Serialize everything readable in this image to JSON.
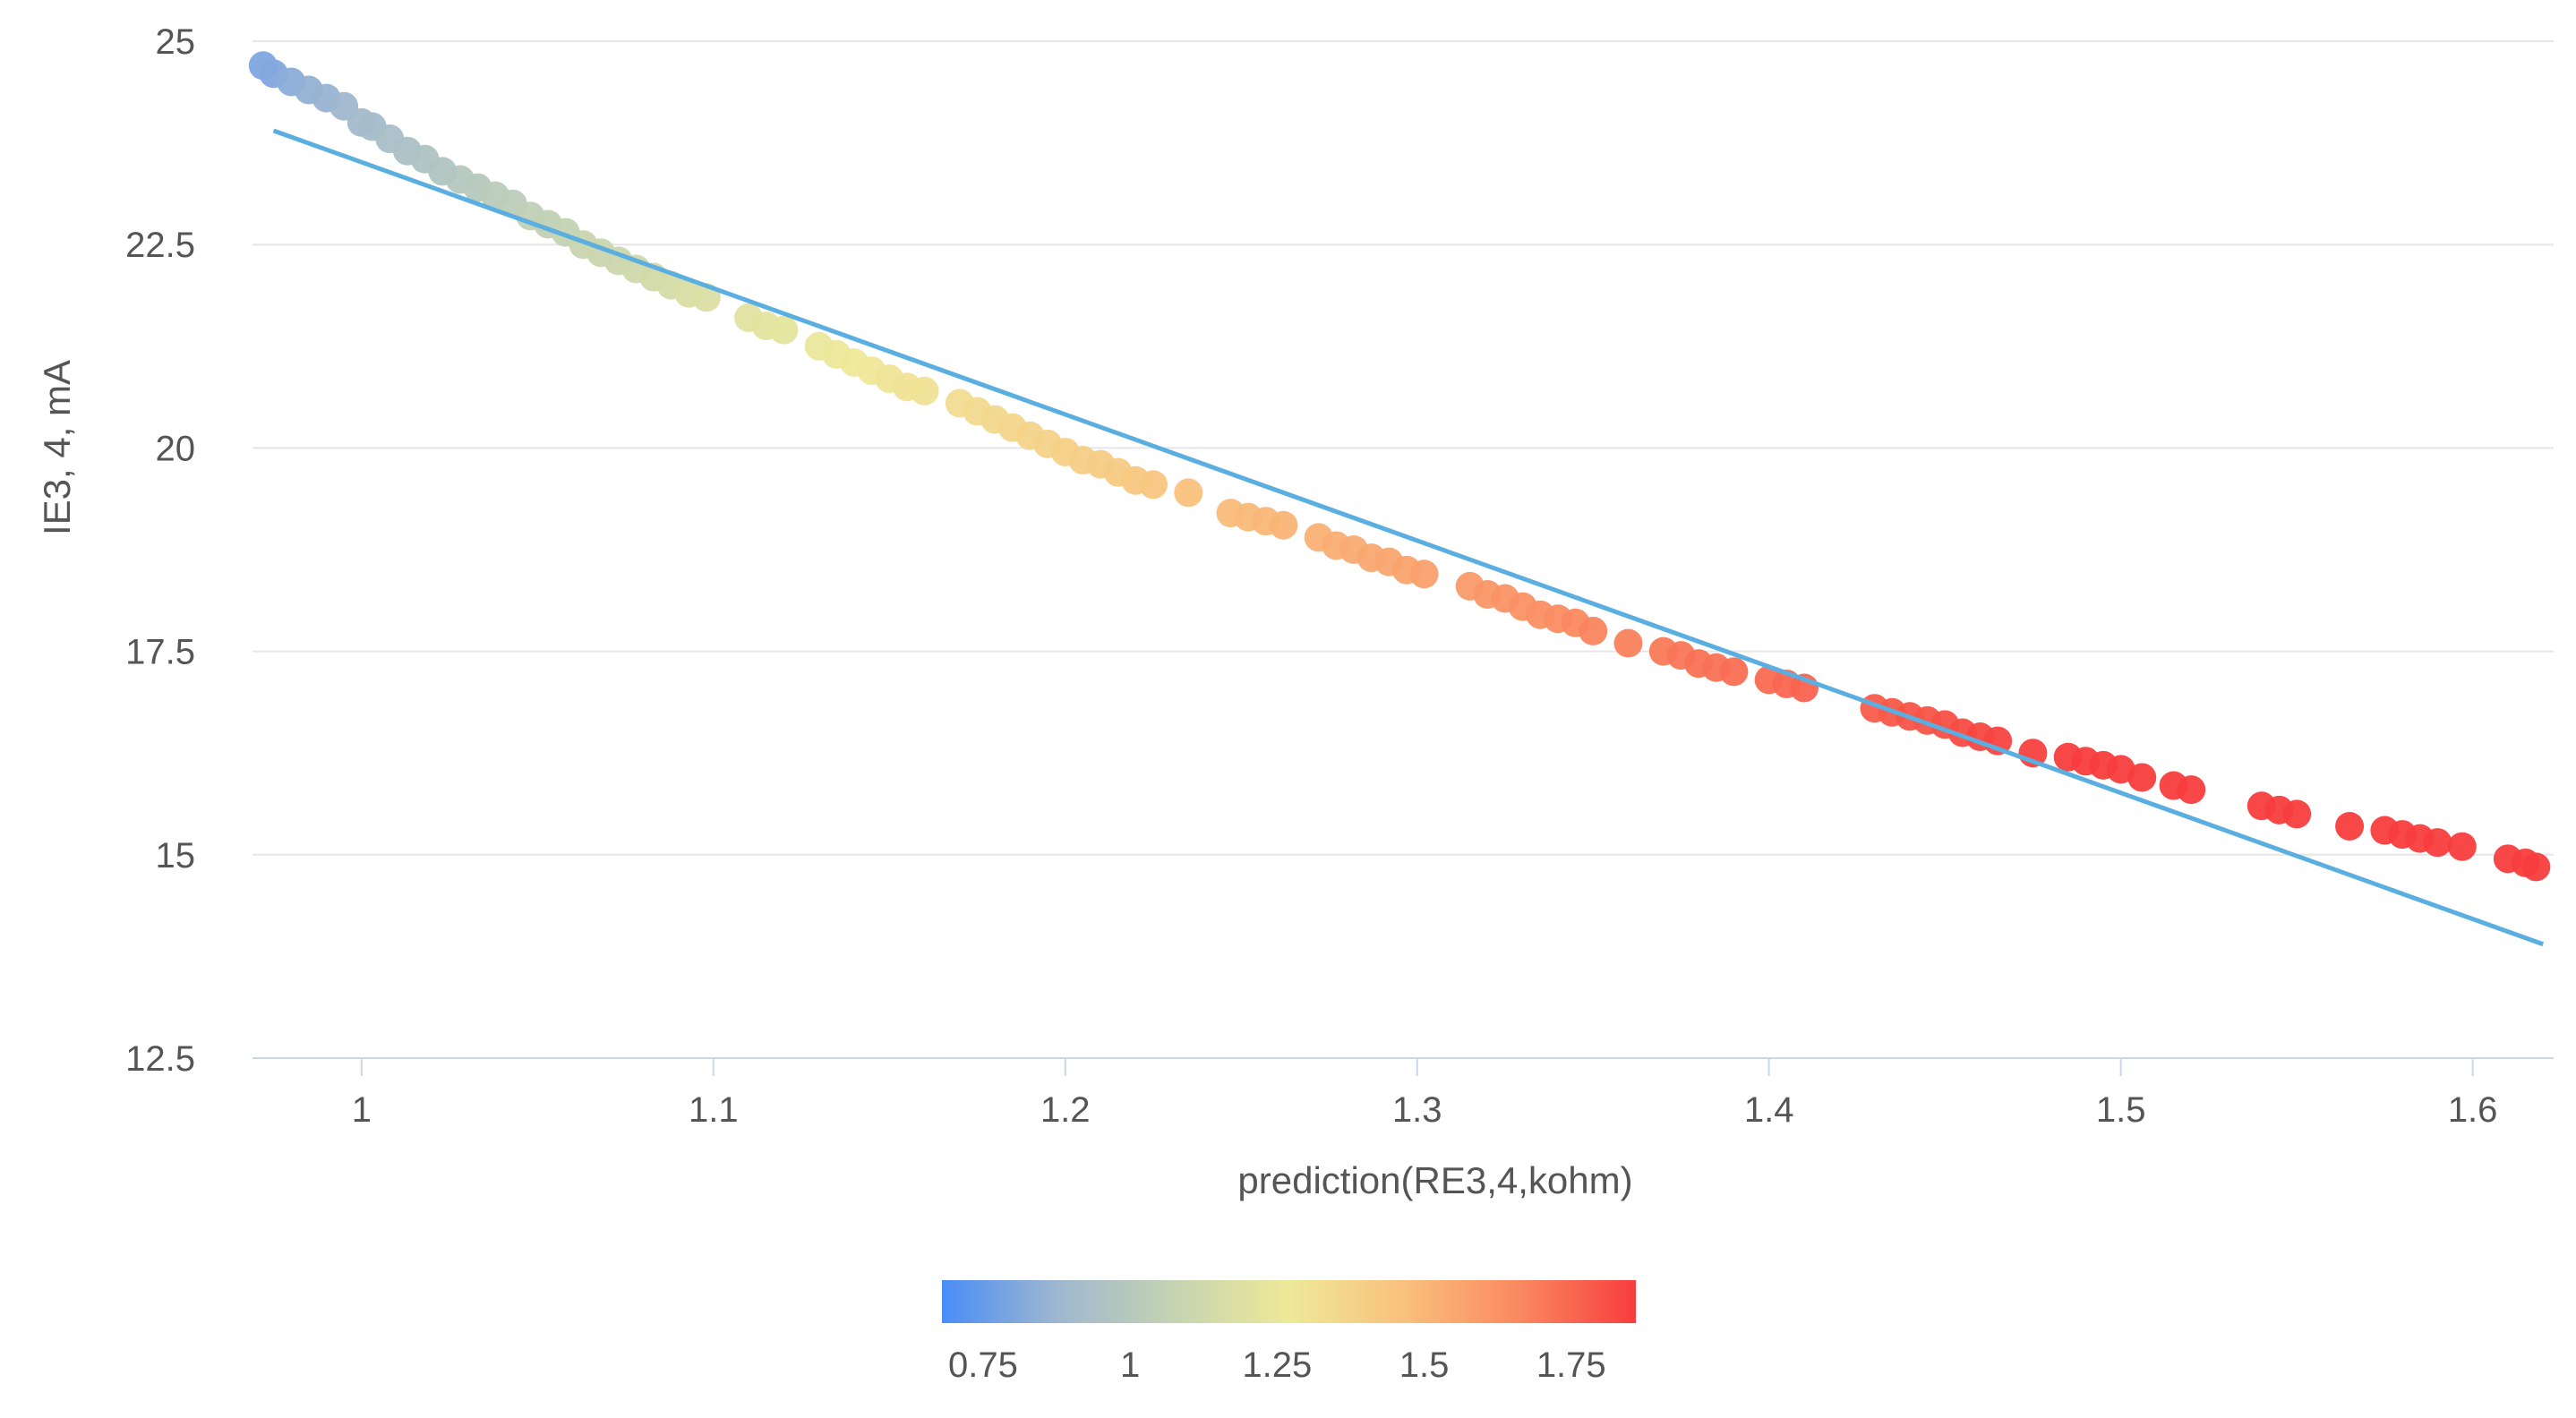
{
  "chart_data": {
    "type": "scatter",
    "title": "",
    "xlabel": "prediction(RE3,4,kohm)",
    "ylabel": "IE3, 4, mA",
    "xlim": [
      0.969,
      1.623
    ],
    "ylim": [
      12.5,
      25
    ],
    "x_ticks": [
      "1",
      "1.1",
      "1.2",
      "1.3",
      "1.4",
      "1.5",
      "1.6"
    ],
    "y_ticks": [
      "25",
      "22.5",
      "20",
      "17.5",
      "15",
      "12.5"
    ],
    "grid": true,
    "series": [
      {
        "x": [
          0.972,
          0.975,
          0.98,
          0.985,
          0.99,
          0.995,
          1.0,
          1.003,
          1.008,
          1.013,
          1.018,
          1.023,
          1.028,
          1.033,
          1.038,
          1.043,
          1.048,
          1.053,
          1.058,
          1.063,
          1.068,
          1.073,
          1.078,
          1.083,
          1.088,
          1.093,
          1.098,
          1.11,
          1.115,
          1.12,
          1.13,
          1.135,
          1.14,
          1.145,
          1.15,
          1.155,
          1.16,
          1.17,
          1.175,
          1.18,
          1.185,
          1.19,
          1.195,
          1.2,
          1.205,
          1.21,
          1.215,
          1.22,
          1.225,
          1.235,
          1.247,
          1.252,
          1.257,
          1.262,
          1.272,
          1.277,
          1.282,
          1.287,
          1.292,
          1.297,
          1.302,
          1.315,
          1.32,
          1.325,
          1.33,
          1.335,
          1.34,
          1.345,
          1.35,
          1.36,
          1.37,
          1.375,
          1.38,
          1.385,
          1.39,
          1.4,
          1.405,
          1.41,
          1.43,
          1.435,
          1.44,
          1.445,
          1.45,
          1.455,
          1.46,
          1.465,
          1.475,
          1.485,
          1.49,
          1.495,
          1.5,
          1.506,
          1.515,
          1.52,
          1.54,
          1.545,
          1.55,
          1.565,
          1.575,
          1.58,
          1.585,
          1.59,
          1.597,
          1.61,
          1.615,
          1.618
        ],
        "y": [
          24.7,
          24.6,
          24.5,
          24.4,
          24.3,
          24.2,
          24.0,
          23.95,
          23.8,
          23.65,
          23.55,
          23.4,
          23.3,
          23.2,
          23.1,
          23.0,
          22.85,
          22.75,
          22.65,
          22.5,
          22.4,
          22.3,
          22.2,
          22.1,
          22.0,
          21.9,
          21.85,
          21.6,
          21.5,
          21.45,
          21.25,
          21.15,
          21.05,
          20.95,
          20.85,
          20.75,
          20.7,
          20.55,
          20.45,
          20.35,
          20.25,
          20.15,
          20.05,
          19.95,
          19.85,
          19.8,
          19.7,
          19.6,
          19.55,
          19.45,
          19.2,
          19.15,
          19.1,
          19.05,
          18.9,
          18.8,
          18.75,
          18.65,
          18.6,
          18.5,
          18.45,
          18.3,
          18.2,
          18.15,
          18.05,
          17.95,
          17.9,
          17.85,
          17.75,
          17.6,
          17.5,
          17.45,
          17.35,
          17.3,
          17.25,
          17.15,
          17.1,
          17.05,
          16.8,
          16.75,
          16.7,
          16.65,
          16.6,
          16.5,
          16.45,
          16.4,
          16.25,
          16.2,
          16.15,
          16.1,
          16.05,
          15.95,
          15.85,
          15.8,
          15.6,
          15.55,
          15.5,
          15.35,
          15.3,
          15.25,
          15.2,
          15.15,
          15.1,
          14.95,
          14.9,
          14.85
        ],
        "color_value": [
          0.8,
          0.81,
          0.83,
          0.85,
          0.86,
          0.88,
          0.9,
          0.91,
          0.93,
          0.94,
          0.96,
          0.97,
          0.99,
          1.0,
          1.02,
          1.03,
          1.05,
          1.06,
          1.07,
          1.09,
          1.1,
          1.11,
          1.13,
          1.14,
          1.15,
          1.17,
          1.18,
          1.21,
          1.22,
          1.23,
          1.25,
          1.26,
          1.27,
          1.28,
          1.29,
          1.3,
          1.31,
          1.33,
          1.34,
          1.35,
          1.36,
          1.37,
          1.38,
          1.39,
          1.4,
          1.41,
          1.42,
          1.43,
          1.44,
          1.46,
          1.48,
          1.49,
          1.5,
          1.51,
          1.52,
          1.53,
          1.54,
          1.55,
          1.56,
          1.57,
          1.58,
          1.6,
          1.61,
          1.62,
          1.63,
          1.64,
          1.65,
          1.66,
          1.67,
          1.68,
          1.7,
          1.71,
          1.72,
          1.72,
          1.73,
          1.74,
          1.75,
          1.76,
          1.78,
          1.79,
          1.8,
          1.8,
          1.81,
          1.82,
          1.83,
          1.84,
          1.85,
          1.86,
          1.87,
          1.88,
          1.88,
          1.89,
          1.9,
          1.91,
          1.93,
          1.94,
          1.95,
          1.96,
          1.97,
          1.97,
          1.98,
          1.99,
          1.99,
          2.0,
          2.0,
          2.0
        ]
      },
      {
        "type": "line",
        "x": [
          0.975,
          1.62
        ],
        "y": [
          23.9,
          13.9
        ],
        "color": "#5aaee0"
      }
    ],
    "colorbar": {
      "ticks": [
        "0.75",
        "1",
        "1.25",
        "1.5",
        "1.75"
      ],
      "tick_values": [
        0.75,
        1,
        1.25,
        1.5,
        1.75
      ],
      "range": [
        0.68,
        1.86
      ],
      "colors": [
        "#4a8cf7",
        "#9fb7cf",
        "#c4d3b2",
        "#eee999",
        "#f9c07c",
        "#fa8860",
        "#f73d3d"
      ]
    },
    "colors": {
      "grid": "#e6e6e6",
      "axis": "#ccd6eb",
      "text": "#555555"
    }
  }
}
